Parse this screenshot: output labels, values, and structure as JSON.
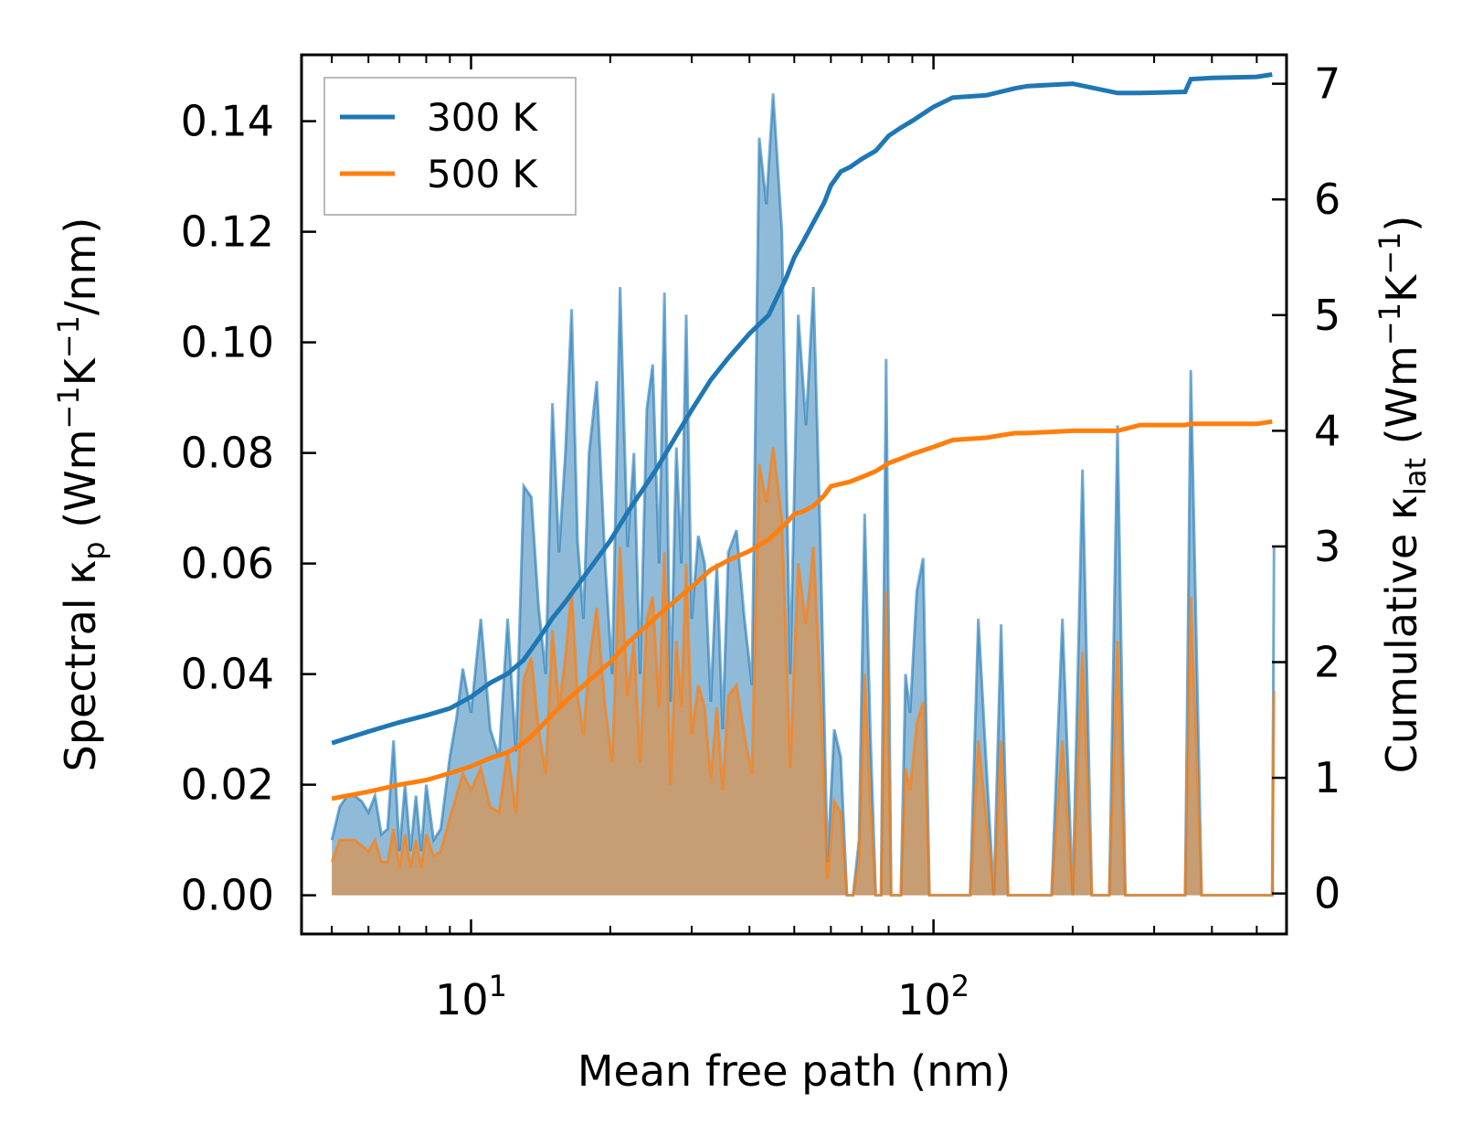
{
  "chart_data": {
    "type": "line",
    "x_scale": "log",
    "xlabel": "Mean free path (nm)",
    "ylabel_left": {
      "prefix": "Spectral κ",
      "sub": "p",
      "units_a": " (Wm",
      "sup1": "−1",
      "units_b": "K",
      "sup2": "−1",
      "units_c": "/nm)"
    },
    "ylabel_right": {
      "prefix": "Cumulative κ",
      "sub": "lat",
      "units_a": " (Wm",
      "sup1": "−1",
      "units_b": "K",
      "sup2": "−1",
      "units_c": ")"
    },
    "xlim": [
      4.3,
      580
    ],
    "ylim_left": [
      -0.007,
      0.152
    ],
    "ylim_right": [
      -0.35,
      7.25
    ],
    "x_ticks": [
      {
        "value": 10,
        "base": "10",
        "exp": "1"
      },
      {
        "value": 100,
        "base": "10",
        "exp": "2"
      }
    ],
    "y_ticks_left": [
      {
        "value": 0.0,
        "label": "0.00"
      },
      {
        "value": 0.02,
        "label": "0.02"
      },
      {
        "value": 0.04,
        "label": "0.04"
      },
      {
        "value": 0.06,
        "label": "0.06"
      },
      {
        "value": 0.08,
        "label": "0.08"
      },
      {
        "value": 0.1,
        "label": "0.10"
      },
      {
        "value": 0.12,
        "label": "0.12"
      },
      {
        "value": 0.14,
        "label": "0.14"
      }
    ],
    "y_ticks_right": [
      {
        "value": 0,
        "label": "0"
      },
      {
        "value": 1,
        "label": "1"
      },
      {
        "value": 2,
        "label": "2"
      },
      {
        "value": 3,
        "label": "3"
      },
      {
        "value": 4,
        "label": "4"
      },
      {
        "value": 5,
        "label": "5"
      },
      {
        "value": 6,
        "label": "6"
      },
      {
        "value": 7,
        "label": "7"
      }
    ],
    "legend": {
      "position": "top-left",
      "entries": [
        {
          "label": "300 K",
          "color": "#1f77b4"
        },
        {
          "label": "500 K",
          "color": "#ff7f0e"
        }
      ]
    },
    "colors": {
      "c300": "#1f77b4",
      "c500": "#ff7f0e",
      "fill300": "#1f77b4",
      "fill500": "#ff7f0e"
    },
    "spectral": {
      "x": [
        5.0,
        5.2,
        5.4,
        5.6,
        5.8,
        6.0,
        6.2,
        6.4,
        6.6,
        6.8,
        7.0,
        7.2,
        7.4,
        7.6,
        7.8,
        8.0,
        8.3,
        8.6,
        9.0,
        9.3,
        9.6,
        10.0,
        10.5,
        11.0,
        11.5,
        12.0,
        12.5,
        13.0,
        13.5,
        14.0,
        14.5,
        15.0,
        15.5,
        16.0,
        16.5,
        17.0,
        17.5,
        18.0,
        18.7,
        19.5,
        20.2,
        21.0,
        21.8,
        22.5,
        23.2,
        24.0,
        24.7,
        25.5,
        26.2,
        27.0,
        27.8,
        28.5,
        29.2,
        30.0,
        31.0,
        32.0,
        33.0,
        34.0,
        35.0,
        36.0,
        37.5,
        39.0,
        40.5,
        42.0,
        43.5,
        45.0,
        47.0,
        49.0,
        51.0,
        53.0,
        55.0,
        57.0,
        59.0,
        61.0,
        63.0,
        65.0,
        67.0,
        69.0,
        71.0,
        73.0,
        75.0,
        77.0,
        79.0,
        81.0,
        83.0,
        85.0,
        87.0,
        89.0,
        92.0,
        95.0,
        98.0,
        101.0,
        104.0,
        108.0,
        112.0,
        116.0,
        120.0,
        125.0,
        130.0,
        135.0,
        140.0,
        145.0,
        150.0,
        155.0,
        160.0,
        170.0,
        180.0,
        190.0,
        200.0,
        210.0,
        220.0,
        230.0,
        240.0,
        250.0,
        260.0,
        280.0,
        300.0,
        320.0,
        340.0,
        350.0,
        360.0,
        380.0,
        400.0,
        450.0,
        500.0,
        540.0,
        545.0
      ],
      "k300": [
        0.01,
        0.016,
        0.018,
        0.018,
        0.017,
        0.015,
        0.018,
        0.011,
        0.012,
        0.028,
        0.008,
        0.02,
        0.008,
        0.018,
        0.008,
        0.02,
        0.01,
        0.012,
        0.025,
        0.032,
        0.041,
        0.033,
        0.05,
        0.03,
        0.025,
        0.05,
        0.026,
        0.074,
        0.072,
        0.052,
        0.04,
        0.089,
        0.062,
        0.08,
        0.106,
        0.064,
        0.05,
        0.08,
        0.093,
        0.06,
        0.04,
        0.11,
        0.063,
        0.08,
        0.04,
        0.088,
        0.096,
        0.06,
        0.109,
        0.035,
        0.081,
        0.06,
        0.105,
        0.05,
        0.065,
        0.06,
        0.035,
        0.06,
        0.03,
        0.062,
        0.066,
        0.05,
        0.038,
        0.137,
        0.125,
        0.145,
        0.12,
        0.04,
        0.105,
        0.085,
        0.11,
        0.062,
        0.006,
        0.03,
        0.025,
        0.0,
        0.0,
        0.01,
        0.069,
        0.03,
        0.0,
        0.0,
        0.097,
        0.0,
        0.0,
        0.0,
        0.04,
        0.033,
        0.055,
        0.061,
        0.0,
        0.0,
        0.0,
        0.0,
        0.0,
        0.0,
        0.0,
        0.05,
        0.024,
        0.0,
        0.049,
        0.0,
        0.0,
        0.0,
        0.0,
        0.0,
        0.0,
        0.05,
        0.0,
        0.077,
        0.0,
        0.0,
        0.0,
        0.085,
        0.0,
        0.0,
        0.0,
        0.0,
        0.0,
        0.0,
        0.095,
        0.0,
        0.0,
        0.0,
        0.0,
        0.0,
        0.063
      ],
      "k500": [
        0.006,
        0.01,
        0.01,
        0.01,
        0.009,
        0.008,
        0.01,
        0.006,
        0.006,
        0.012,
        0.005,
        0.011,
        0.005,
        0.01,
        0.005,
        0.011,
        0.007,
        0.008,
        0.014,
        0.018,
        0.022,
        0.019,
        0.023,
        0.016,
        0.015,
        0.026,
        0.015,
        0.039,
        0.043,
        0.03,
        0.022,
        0.048,
        0.034,
        0.043,
        0.055,
        0.036,
        0.029,
        0.042,
        0.052,
        0.034,
        0.024,
        0.063,
        0.036,
        0.046,
        0.024,
        0.05,
        0.054,
        0.034,
        0.062,
        0.02,
        0.046,
        0.034,
        0.06,
        0.029,
        0.038,
        0.034,
        0.021,
        0.034,
        0.019,
        0.036,
        0.038,
        0.029,
        0.022,
        0.078,
        0.071,
        0.081,
        0.068,
        0.023,
        0.06,
        0.049,
        0.063,
        0.036,
        0.003,
        0.017,
        0.015,
        0.0,
        0.0,
        0.006,
        0.04,
        0.017,
        0.0,
        0.0,
        0.055,
        0.0,
        0.0,
        0.0,
        0.023,
        0.019,
        0.031,
        0.035,
        0.0,
        0.0,
        0.0,
        0.0,
        0.0,
        0.0,
        0.0,
        0.028,
        0.014,
        0.0,
        0.028,
        0.0,
        0.0,
        0.0,
        0.0,
        0.0,
        0.0,
        0.028,
        0.0,
        0.044,
        0.0,
        0.0,
        0.0,
        0.046,
        0.0,
        0.0,
        0.0,
        0.0,
        0.0,
        0.0,
        0.054,
        0.0,
        0.0,
        0.0,
        0.0,
        0.0,
        0.037
      ]
    },
    "cumulative": {
      "x": [
        5.0,
        6.0,
        7.0,
        8.0,
        9.0,
        10.0,
        11.0,
        12.0,
        13.0,
        14.0,
        15.0,
        16.0,
        18.0,
        20.0,
        22.0,
        25.0,
        28.0,
        30.0,
        33.0,
        36.0,
        40.0,
        44.0,
        48.0,
        50.0,
        52.0,
        55.0,
        58.0,
        60.0,
        63.0,
        66.0,
        70.0,
        75.0,
        80.0,
        85.0,
        90.0,
        100.0,
        110.0,
        130.0,
        150.0,
        160.0,
        200.0,
        250.0,
        280.0,
        350.0,
        360.0,
        400.0,
        500.0,
        540.0
      ],
      "c300": [
        1.3,
        1.4,
        1.48,
        1.54,
        1.6,
        1.7,
        1.82,
        1.9,
        2.02,
        2.2,
        2.38,
        2.52,
        2.8,
        3.05,
        3.32,
        3.65,
        3.98,
        4.18,
        4.44,
        4.63,
        4.84,
        5.0,
        5.32,
        5.5,
        5.62,
        5.8,
        5.97,
        6.12,
        6.24,
        6.28,
        6.35,
        6.42,
        6.55,
        6.62,
        6.68,
        6.8,
        6.88,
        6.9,
        6.96,
        6.98,
        7.0,
        6.92,
        6.92,
        6.93,
        7.04,
        7.05,
        7.06,
        7.08
      ],
      "c500": [
        0.82,
        0.88,
        0.94,
        0.98,
        1.04,
        1.1,
        1.17,
        1.22,
        1.3,
        1.42,
        1.55,
        1.66,
        1.84,
        2.0,
        2.18,
        2.38,
        2.55,
        2.65,
        2.8,
        2.88,
        2.96,
        3.06,
        3.2,
        3.28,
        3.3,
        3.35,
        3.44,
        3.52,
        3.54,
        3.56,
        3.6,
        3.65,
        3.72,
        3.76,
        3.8,
        3.86,
        3.92,
        3.94,
        3.98,
        3.98,
        4.0,
        4.0,
        4.05,
        4.05,
        4.06,
        4.06,
        4.06,
        4.08
      ]
    }
  }
}
